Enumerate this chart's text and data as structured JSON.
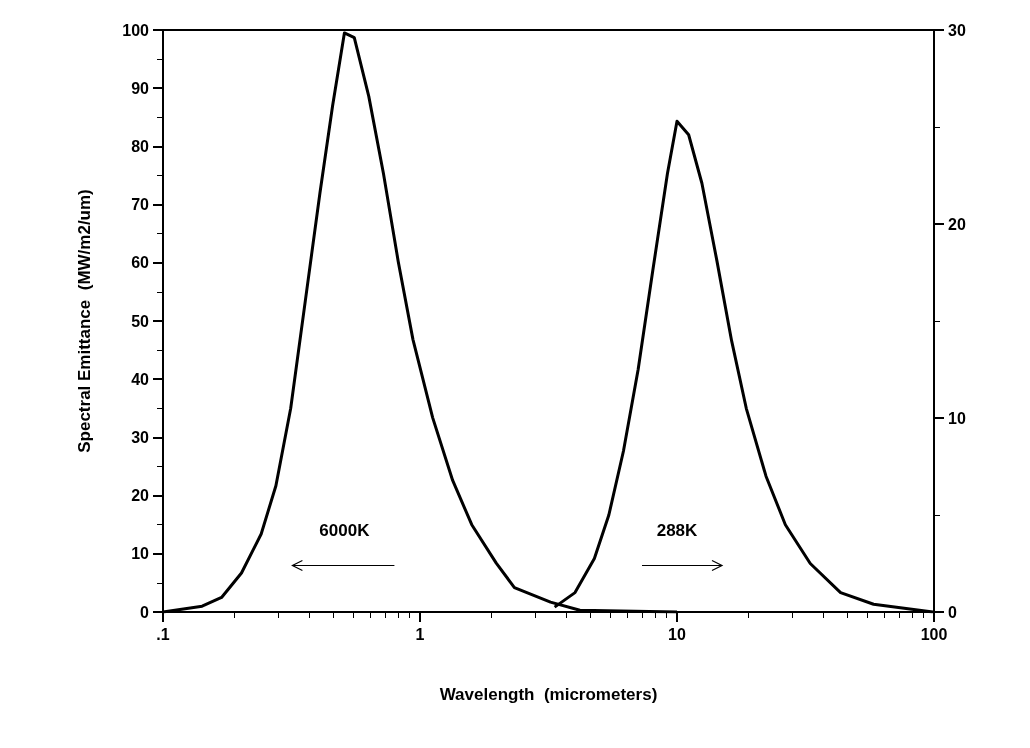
{
  "chart_data": {
    "type": "line",
    "xlabel": "Wavelength  (micrometers)",
    "ylabel": "Spectral Emittance  (MW/m2/um)",
    "log": "x",
    "grid": false,
    "marker": "none",
    "line_style": "solid",
    "xlim": [
      0.1,
      100
    ],
    "xticks": [
      {
        "value": 0.1,
        "label": ".1"
      },
      1,
      10,
      100
    ],
    "ylim": [
      0,
      100
    ],
    "yticks": [
      0,
      10,
      20,
      30,
      40,
      50,
      60,
      70,
      80,
      90,
      100
    ],
    "y2lim": [
      0,
      30
    ],
    "y2ticks": [
      0,
      10,
      20,
      30
    ],
    "annotations": [
      "6000K",
      "288K"
    ],
    "series": [
      {
        "color": "#000000",
        "x": [
          0.1,
          0.142,
          0.169,
          0.202,
          0.241,
          0.275,
          0.314,
          0.358,
          0.408,
          0.457,
          0.508,
          0.555,
          0.632,
          0.721,
          0.823,
          0.939,
          1.12,
          1.34,
          1.59,
          1.98,
          2.33,
          3.22,
          4.19,
          10
        ],
        "values": [
          0,
          1,
          2.5,
          6.7,
          13.4,
          21.7,
          35,
          53.5,
          72,
          87,
          99.5,
          98.7,
          88.6,
          75.3,
          60.2,
          46.8,
          33.4,
          22.6,
          15,
          8.4,
          4.2,
          1.7,
          0.3,
          0
        ]
      },
      {
        "color": "#000000",
        "axis": "y2",
        "x": [
          3.34,
          4.01,
          4.77,
          5.43,
          6.19,
          7.06,
          8.05,
          9.18,
          10,
          11.1,
          12.5,
          14.3,
          16.3,
          18.6,
          22.2,
          26.4,
          33,
          43.3,
          58.2,
          99
        ],
        "values": [
          0.25,
          1,
          2.76,
          5,
          8.3,
          12.5,
          17.6,
          22.6,
          25.3,
          24.6,
          22.1,
          18.1,
          14,
          10.5,
          7,
          4.5,
          2.5,
          1,
          0.4,
          0
        ]
      }
    ]
  }
}
